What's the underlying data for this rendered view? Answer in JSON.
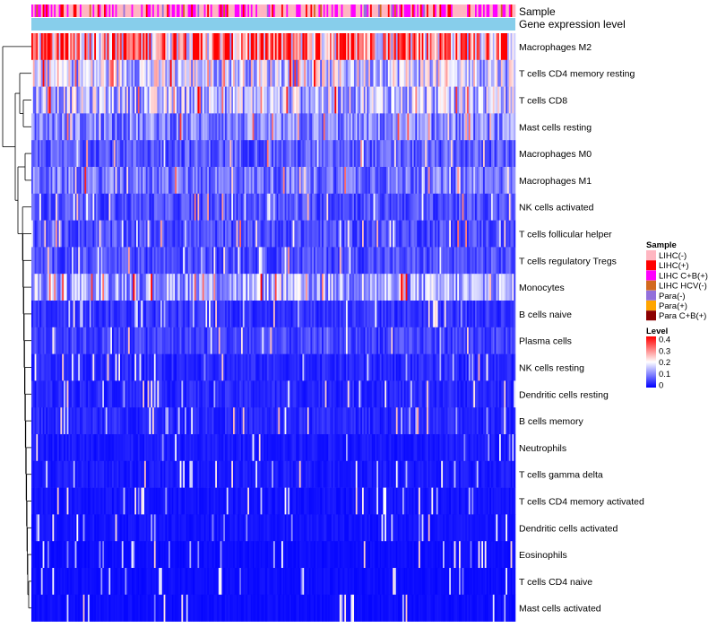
{
  "chart_data": {
    "type": "heatmap",
    "title": "",
    "annotations": {
      "sample_track_label": "Sample",
      "level_track_label": "Gene expression level"
    },
    "rows": [
      {
        "name": "Macrophages M2",
        "mean": 0.3
      },
      {
        "name": "T cells CD4 memory resting",
        "mean": 0.17
      },
      {
        "name": "T cells CD8",
        "mean": 0.15
      },
      {
        "name": "Mast cells resting",
        "mean": 0.1
      },
      {
        "name": "Macrophages M0",
        "mean": 0.07
      },
      {
        "name": "Macrophages M1",
        "mean": 0.09
      },
      {
        "name": "NK cells activated",
        "mean": 0.06
      },
      {
        "name": "T cells follicular helper",
        "mean": 0.06
      },
      {
        "name": "T cells regulatory  Tregs",
        "mean": 0.06
      },
      {
        "name": "Monocytes",
        "mean": 0.13
      },
      {
        "name": "B cells naive",
        "mean": 0.04
      },
      {
        "name": "Plasma cells",
        "mean": 0.05
      },
      {
        "name": "NK cells resting",
        "mean": 0.03
      },
      {
        "name": "Dendritic cells resting",
        "mean": 0.03
      },
      {
        "name": "B cells memory",
        "mean": 0.03
      },
      {
        "name": "Neutrophils",
        "mean": 0.02
      },
      {
        "name": "T cells gamma delta",
        "mean": 0.02
      },
      {
        "name": "T cells CD4 memory activated",
        "mean": 0.015
      },
      {
        "name": "Dendritic cells activated",
        "mean": 0.015
      },
      {
        "name": "Eosinophils",
        "mean": 0.01
      },
      {
        "name": "T cells CD4 naive",
        "mean": 0.01
      },
      {
        "name": "Mast cells activated",
        "mean": 0.01
      }
    ],
    "sample_groups": [
      {
        "label": "LIHC(-)",
        "color": "#FFB6C1"
      },
      {
        "label": "LIHC(+)",
        "color": "#FF0000"
      },
      {
        "label": "LIHC C+B(+)",
        "color": "#FF00FF"
      },
      {
        "label": "LIHC HCV(-)",
        "color": "#D2691E"
      },
      {
        "label": "Para(-)",
        "color": "#9370DB"
      },
      {
        "label": "Para(+)",
        "color": "#FFA500"
      },
      {
        "label": "Para C+B(+)",
        "color": "#8B0000"
      }
    ],
    "level_track_color": "#87CEEB",
    "color_scale": {
      "title": "Level",
      "min": 0,
      "max": 0.4,
      "low_color": "#0000FF",
      "mid_color": "#FFFFFF",
      "high_color": "#FF0000",
      "ticks": [
        "0.4",
        "0.3",
        "0.2",
        "0.1",
        "0"
      ]
    },
    "legend_position": "right"
  }
}
